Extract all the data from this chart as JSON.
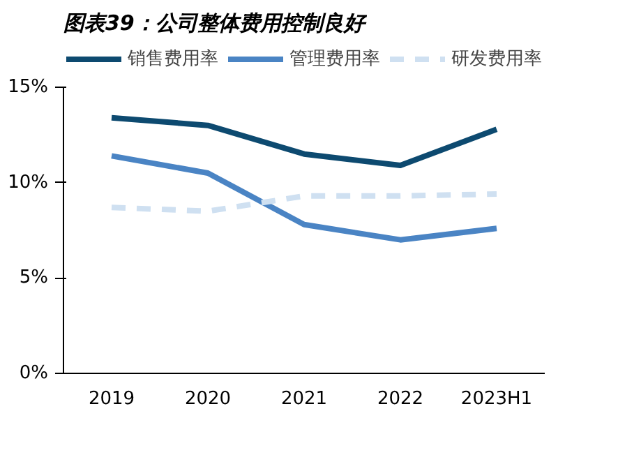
{
  "chart_data": {
    "type": "line",
    "title": "图表39：公司整体费用控制良好",
    "categories": [
      "2019",
      "2020",
      "2021",
      "2022",
      "2023H1"
    ],
    "series": [
      {
        "name": "销售费用率",
        "color": "#0d4a70",
        "values": [
          13.4,
          13.0,
          11.5,
          10.9,
          12.8
        ]
      },
      {
        "name": "管理费用率",
        "color": "#4a84c4",
        "values": [
          11.4,
          10.5,
          7.8,
          7.0,
          7.6
        ]
      },
      {
        "name": "研发费用率",
        "color": "#cfe0f1",
        "line_style": "dashed",
        "values": [
          8.7,
          8.5,
          9.3,
          9.3,
          9.4
        ]
      }
    ],
    "ylim": [
      0,
      15
    ],
    "yticks": [
      {
        "value": 0,
        "label": "0%"
      },
      {
        "value": 5,
        "label": "5%"
      },
      {
        "value": 10,
        "label": "10%"
      },
      {
        "value": 15,
        "label": "15%"
      }
    ],
    "grid": false,
    "legend": "top",
    "line_style": "solid"
  }
}
